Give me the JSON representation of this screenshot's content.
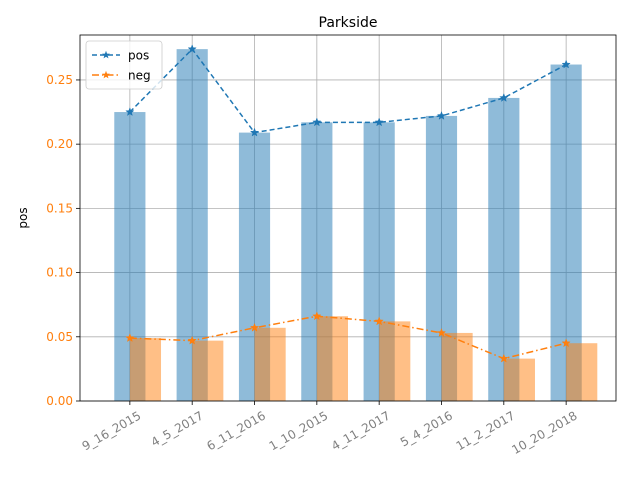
{
  "chart_data": {
    "type": "bar",
    "title": "Parkside",
    "xlabel": "",
    "ylabel": "pos",
    "categories": [
      "9_16_2015",
      "4_5_2017",
      "6_11_2016",
      "1_10_2015",
      "4_11_2017",
      "5_4_2016",
      "11_2_2017",
      "10_20_2018"
    ],
    "series": [
      {
        "name": "pos",
        "values": [
          0.225,
          0.274,
          0.209,
          0.217,
          0.217,
          0.222,
          0.236,
          0.262
        ],
        "color": "#1f77b4",
        "bar_color": "#8cb9dc",
        "line_style": "dashed",
        "marker": "star"
      },
      {
        "name": "neg",
        "values": [
          0.049,
          0.047,
          0.057,
          0.066,
          0.062,
          0.053,
          0.033,
          0.045
        ],
        "color": "#ff7f0e",
        "bar_color": "#ffbb80",
        "line_style": "dashdot",
        "marker": "star"
      }
    ],
    "ylim": [
      0,
      0.285
    ],
    "yticks": [
      "0.00",
      "0.05",
      "0.10",
      "0.15",
      "0.20",
      "0.25"
    ],
    "ytick_color": "#ff7f0e",
    "xtick_color": "#808080",
    "xtick_rotation": 30,
    "grid": true,
    "legend": "top-left"
  }
}
